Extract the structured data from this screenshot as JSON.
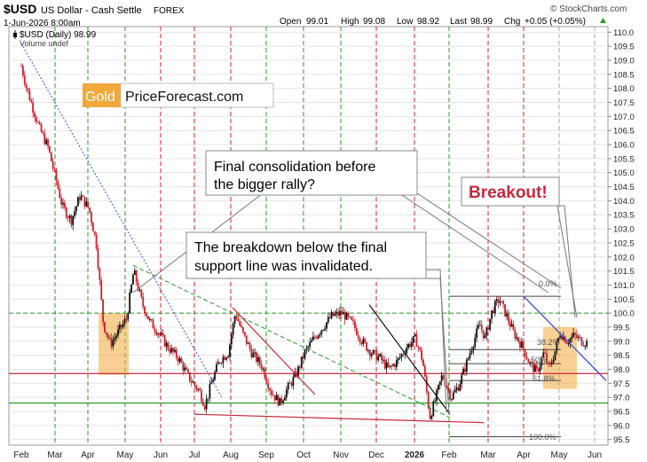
{
  "header": {
    "symbol": "$USD",
    "name": "US Dollar - Cash Settle",
    "exchange": "FOREX",
    "date": "1-Jun-2026 8:00am",
    "open_label": "Open",
    "open": "99.01",
    "high_label": "High",
    "high": "99.08",
    "low_label": "Low",
    "low": "98.92",
    "last_label": "Last",
    "last": "98.99",
    "chg_label": "Chg",
    "chg": "+0.05 (+0.05%)",
    "source": "© StockCharts.com"
  },
  "legend": {
    "series_label": "$USD (Daily) 98.99",
    "volume_label": "Volume undef"
  },
  "watermark": {
    "gold": "Gold",
    "rest": "PriceForecast.com"
  },
  "annotations": {
    "callout1_line1": "Final consolidation before",
    "callout1_line2": "the bigger rally?",
    "callout2_line1": "The breakdown below the final",
    "callout2_line2": "support line was invalidated.",
    "breakout": "Breakout!",
    "fib_0": "0.0%",
    "fib_38": "38.2%",
    "fib_50": "50%",
    "fib_618": "61.8%",
    "fib_100": "100.0%"
  },
  "colors": {
    "up": "#111111",
    "down": "#cc1f2b",
    "accent_red": "#c8283c",
    "gold": "#f2a93b",
    "green_line": "#2e9a2e",
    "blue_line": "#3b4fd6"
  },
  "chart_data": {
    "type": "candlestick",
    "title": "$USD US Dollar - Cash Settle FOREX",
    "x_tick_labels": [
      "Feb",
      "Mar",
      "Apr",
      "May",
      "Jun",
      "Jul",
      "Aug",
      "Sep",
      "Oct",
      "Nov",
      "Dec",
      "2026",
      "Feb",
      "Mar",
      "Apr",
      "May",
      "Jun"
    ],
    "y_tick_labels": [
      "110.0",
      "109.5",
      "109.0",
      "108.5",
      "108.0",
      "107.5",
      "107.0",
      "106.5",
      "106.0",
      "105.5",
      "105.0",
      "104.5",
      "104.0",
      "103.5",
      "103.0",
      "102.5",
      "102.0",
      "101.5",
      "101.0",
      "100.5",
      "100.0",
      "99.5",
      "99.0",
      "98.5",
      "98.0",
      "97.5",
      "97.0",
      "96.5",
      "96.0",
      "95.5"
    ],
    "ylim": [
      95.3,
      110.2
    ],
    "y_axis_side": "right",
    "approximate_price_path": [
      {
        "x": 0.0,
        "y": 108.8
      },
      {
        "x": 0.15,
        "y": 108.0
      },
      {
        "x": 0.3,
        "y": 107.4
      },
      {
        "x": 0.5,
        "y": 106.6
      },
      {
        "x": 0.75,
        "y": 105.9
      },
      {
        "x": 1.0,
        "y": 104.6
      },
      {
        "x": 1.15,
        "y": 103.8
      },
      {
        "x": 1.4,
        "y": 103.3
      },
      {
        "x": 1.65,
        "y": 104.2
      },
      {
        "x": 1.9,
        "y": 103.7
      },
      {
        "x": 2.1,
        "y": 102.5
      },
      {
        "x": 2.3,
        "y": 99.6
      },
      {
        "x": 2.5,
        "y": 98.9
      },
      {
        "x": 2.7,
        "y": 99.3
      },
      {
        "x": 2.95,
        "y": 99.8
      },
      {
        "x": 3.15,
        "y": 101.5
      },
      {
        "x": 3.4,
        "y": 100.3
      },
      {
        "x": 3.6,
        "y": 99.7
      },
      {
        "x": 3.85,
        "y": 99.3
      },
      {
        "x": 4.1,
        "y": 98.8
      },
      {
        "x": 4.4,
        "y": 98.4
      },
      {
        "x": 4.7,
        "y": 97.7
      },
      {
        "x": 5.0,
        "y": 97.2
      },
      {
        "x": 5.15,
        "y": 96.7
      },
      {
        "x": 5.35,
        "y": 97.6
      },
      {
        "x": 5.55,
        "y": 98.3
      },
      {
        "x": 5.8,
        "y": 98.6
      },
      {
        "x": 6.0,
        "y": 100.0
      },
      {
        "x": 6.2,
        "y": 99.3
      },
      {
        "x": 6.45,
        "y": 98.6
      },
      {
        "x": 6.75,
        "y": 98.1
      },
      {
        "x": 7.0,
        "y": 97.2
      },
      {
        "x": 7.25,
        "y": 96.8
      },
      {
        "x": 7.45,
        "y": 97.3
      },
      {
        "x": 7.7,
        "y": 97.8
      },
      {
        "x": 7.95,
        "y": 98.6
      },
      {
        "x": 8.2,
        "y": 99.1
      },
      {
        "x": 8.45,
        "y": 99.5
      },
      {
        "x": 8.7,
        "y": 99.9
      },
      {
        "x": 9.0,
        "y": 100.0
      },
      {
        "x": 9.3,
        "y": 99.6
      },
      {
        "x": 9.55,
        "y": 99.0
      },
      {
        "x": 9.8,
        "y": 98.6
      },
      {
        "x": 10.05,
        "y": 98.4
      },
      {
        "x": 10.3,
        "y": 98.0
      },
      {
        "x": 10.55,
        "y": 98.3
      },
      {
        "x": 10.8,
        "y": 98.8
      },
      {
        "x": 11.05,
        "y": 99.1
      },
      {
        "x": 11.25,
        "y": 98.3
      },
      {
        "x": 11.45,
        "y": 96.3
      },
      {
        "x": 11.6,
        "y": 96.9
      },
      {
        "x": 11.8,
        "y": 97.8
      },
      {
        "x": 12.05,
        "y": 97.0
      },
      {
        "x": 12.25,
        "y": 97.4
      },
      {
        "x": 12.45,
        "y": 98.1
      },
      {
        "x": 12.65,
        "y": 98.9
      },
      {
        "x": 12.85,
        "y": 99.6
      },
      {
        "x": 13.0,
        "y": 99.1
      },
      {
        "x": 13.2,
        "y": 100.1
      },
      {
        "x": 13.4,
        "y": 100.5
      },
      {
        "x": 13.6,
        "y": 99.9
      },
      {
        "x": 13.8,
        "y": 99.3
      },
      {
        "x": 14.05,
        "y": 98.8
      },
      {
        "x": 14.25,
        "y": 98.2
      },
      {
        "x": 14.45,
        "y": 97.9
      },
      {
        "x": 14.65,
        "y": 98.6
      },
      {
        "x": 14.8,
        "y": 98.0
      },
      {
        "x": 14.95,
        "y": 98.6
      },
      {
        "x": 15.1,
        "y": 99.3
      },
      {
        "x": 15.3,
        "y": 99.0
      },
      {
        "x": 15.5,
        "y": 99.2
      },
      {
        "x": 15.7,
        "y": 99.0
      },
      {
        "x": 15.85,
        "y": 98.95
      }
    ]
  }
}
